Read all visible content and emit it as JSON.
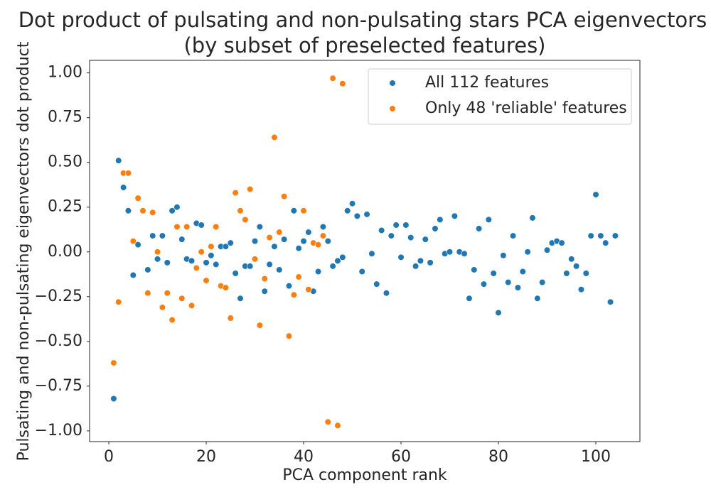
{
  "chart_data": {
    "type": "scatter",
    "title": "Dot product of pulsating and non-pulsating stars PCA eigenvectors",
    "subtitle": "(by subset of preselected features)",
    "x_label": "PCA component rank",
    "y_label": "Pulsating and non-pulsating eigenvectors dot product",
    "xlim": [
      -3.95,
      109.05
    ],
    "ylim": [
      -1.06,
      1.07
    ],
    "xticks": [
      0,
      20,
      40,
      60,
      80,
      100
    ],
    "yticks": [
      {
        "value": -1,
        "label": "−1.00"
      },
      {
        "value": -0.75,
        "label": "−0.75"
      },
      {
        "value": -0.5,
        "label": "−0.50"
      },
      {
        "value": -0.25,
        "label": "−0.25"
      },
      {
        "value": 0,
        "label": "0.00"
      },
      0.25,
      {
        "value": 0.5,
        "label": "0.50"
      },
      0.75,
      {
        "value": 1,
        "label": "1.00"
      }
    ],
    "legend": "upper right",
    "series": [
      {
        "name": "All 112 features",
        "color": "#1f77b4",
        "x": [
          1,
          2,
          3,
          4,
          5,
          6,
          7,
          8,
          9,
          10,
          11,
          12,
          13,
          14,
          15,
          16,
          17,
          18,
          19,
          20,
          21,
          22,
          23,
          24,
          25,
          26,
          27,
          28,
          29,
          30,
          31,
          32,
          33,
          34,
          35,
          36,
          37,
          38,
          39,
          40,
          41,
          42,
          43,
          44,
          45,
          46,
          47,
          48,
          49,
          50,
          51,
          52,
          53,
          54,
          55,
          56,
          57,
          58,
          59,
          60,
          61,
          62,
          63,
          64,
          65,
          66,
          67,
          68,
          69,
          70,
          71,
          72,
          73,
          74,
          75,
          76,
          77,
          78,
          79,
          80,
          81,
          82,
          83,
          84,
          85,
          86,
          87,
          88,
          89,
          90,
          91,
          92,
          93,
          94,
          95,
          96,
          97,
          98,
          99,
          100,
          101,
          102,
          103,
          104
        ],
        "values": [
          -0.82,
          0.51,
          0.36,
          0.23,
          -0.13,
          0.04,
          0.23,
          -0.1,
          0.09,
          -0.04,
          0.09,
          -0.06,
          0.23,
          0.25,
          0.07,
          -0.04,
          -0.05,
          0.16,
          0.15,
          -0.06,
          -0.02,
          -0.07,
          0.03,
          0.03,
          0.05,
          -0.12,
          -0.26,
          -0.08,
          -0.08,
          0.06,
          0.14,
          -0.22,
          -0.07,
          0.03,
          -0.1,
          0.07,
          -0.19,
          0.23,
          0.02,
          0.06,
          0.11,
          -0.22,
          -0.11,
          0.14,
          0.06,
          -0.08,
          -0.05,
          -0.03,
          0.23,
          0.27,
          0.2,
          -0.11,
          0.21,
          -0.01,
          -0.18,
          0.12,
          -0.23,
          0.09,
          0.15,
          -0.03,
          0.15,
          0.08,
          -0.08,
          -0.05,
          0.07,
          -0.06,
          0.13,
          0.18,
          -0.01,
          0.0,
          0.2,
          0.0,
          -0.01,
          -0.26,
          -0.1,
          0.13,
          -0.18,
          0.18,
          -0.12,
          -0.34,
          -0.02,
          -0.17,
          0.09,
          -0.2,
          -0.11,
          0.0,
          0.19,
          -0.26,
          -0.17,
          0.01,
          0.05,
          0.06,
          0.05,
          -0.12,
          -0.04,
          -0.08,
          -0.21,
          -0.12,
          0.09,
          0.32,
          0.09,
          0.05,
          -0.28,
          0.09
        ]
      },
      {
        "name": "Only 48 'reliable' features",
        "color": "#ff7f0e",
        "x": [
          1,
          2,
          3,
          4,
          5,
          6,
          7,
          8,
          9,
          10,
          11,
          12,
          13,
          14,
          15,
          16,
          17,
          18,
          19,
          20,
          21,
          22,
          23,
          24,
          25,
          26,
          27,
          28,
          29,
          30,
          31,
          32,
          33,
          34,
          35,
          36,
          37,
          38,
          39,
          40,
          41,
          42,
          43,
          44,
          45,
          46,
          47,
          48
        ],
        "values": [
          -0.62,
          -0.28,
          0.44,
          0.44,
          0.06,
          0.3,
          0.23,
          -0.23,
          0.22,
          0.0,
          -0.31,
          -0.23,
          -0.38,
          0.14,
          -0.26,
          0.14,
          -0.3,
          -0.09,
          0.0,
          -0.16,
          0.03,
          0.14,
          -0.19,
          -0.2,
          -0.37,
          0.33,
          0.23,
          0.18,
          0.35,
          -0.04,
          -0.41,
          -0.15,
          0.08,
          0.64,
          0.11,
          0.31,
          -0.47,
          -0.24,
          -0.14,
          0.23,
          -0.21,
          0.05,
          0.04,
          0.09,
          -0.95,
          0.97,
          -0.97,
          0.94
        ]
      }
    ]
  }
}
